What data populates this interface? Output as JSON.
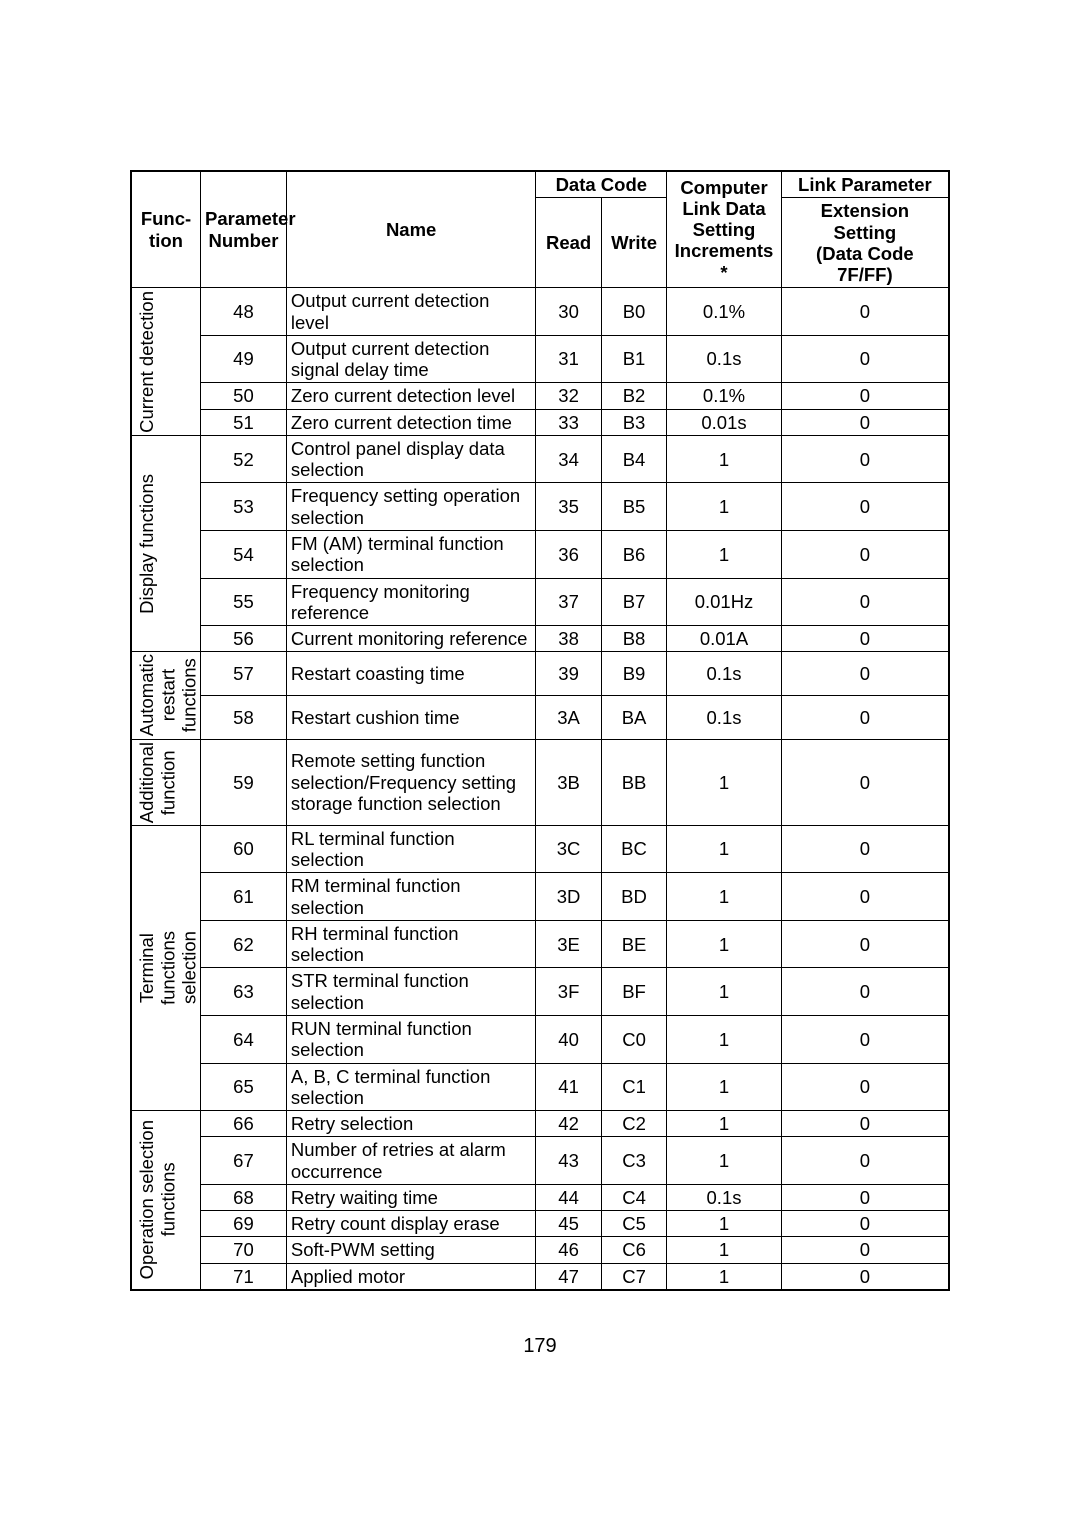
{
  "page_number": "179",
  "headers": {
    "function": "Func-\ntion",
    "parameter_number": "Parameter\nNumber",
    "name": "Name",
    "data_code": "Data Code",
    "read": "Read",
    "write": "Write",
    "increments": "Computer\nLink Data\nSetting\nIncrements *",
    "link_parameter": "Link Parameter",
    "extension": "Extension\nSetting\n(Data Code\n7F/FF)"
  },
  "groups": [
    {
      "label": "Current detection",
      "rows": [
        {
          "param": "48",
          "name": "Output current detection level",
          "read": "30",
          "write": "B0",
          "incr": "0.1%",
          "ext": "0"
        },
        {
          "param": "49",
          "name": "Output current detection signal delay time",
          "read": "31",
          "write": "B1",
          "incr": "0.1s",
          "ext": "0"
        },
        {
          "param": "50",
          "name": "Zero current detection level",
          "read": "32",
          "write": "B2",
          "incr": "0.1%",
          "ext": "0"
        },
        {
          "param": "51",
          "name": "Zero current detection time",
          "read": "33",
          "write": "B3",
          "incr": "0.01s",
          "ext": "0"
        }
      ]
    },
    {
      "label": "Display functions",
      "rows": [
        {
          "param": "52",
          "name": "Control panel display data selection",
          "read": "34",
          "write": "B4",
          "incr": "1",
          "ext": "0"
        },
        {
          "param": "53",
          "name": "Frequency setting operation selection",
          "read": "35",
          "write": "B5",
          "incr": "1",
          "ext": "0"
        },
        {
          "param": "54",
          "name": "FM (AM) terminal function selection",
          "read": "36",
          "write": "B6",
          "incr": "1",
          "ext": "0"
        },
        {
          "param": "55",
          "name": "Frequency monitoring reference",
          "read": "37",
          "write": "B7",
          "incr": "0.01Hz",
          "ext": "0"
        },
        {
          "param": "56",
          "name": "Current monitoring reference",
          "read": "38",
          "write": "B8",
          "incr": "0.01A",
          "ext": "0"
        }
      ]
    },
    {
      "label": "Automatic\nrestart\nfunctions",
      "rows": [
        {
          "param": "57",
          "name": "Restart coasting time",
          "read": "39",
          "write": "B9",
          "incr": "0.1s",
          "ext": "0"
        },
        {
          "param": "58",
          "name": "Restart cushion time",
          "read": "3A",
          "write": "BA",
          "incr": "0.1s",
          "ext": "0"
        }
      ]
    },
    {
      "label": "Additional\nfunction",
      "rows": [
        {
          "param": "59",
          "name": "Remote setting function selection/Frequency setting storage function selection",
          "read": "3B",
          "write": "BB",
          "incr": "1",
          "ext": "0"
        }
      ]
    },
    {
      "label": "Terminal\nfunctions\nselection",
      "rows": [
        {
          "param": "60",
          "name": "RL terminal function selection",
          "read": "3C",
          "write": "BC",
          "incr": "1",
          "ext": "0"
        },
        {
          "param": "61",
          "name": "RM terminal function selection",
          "read": "3D",
          "write": "BD",
          "incr": "1",
          "ext": "0"
        },
        {
          "param": "62",
          "name": "RH terminal function selection",
          "read": "3E",
          "write": "BE",
          "incr": "1",
          "ext": "0"
        },
        {
          "param": "63",
          "name": "STR terminal function selection",
          "read": "3F",
          "write": "BF",
          "incr": "1",
          "ext": "0"
        },
        {
          "param": "64",
          "name": "RUN terminal function selection",
          "read": "40",
          "write": "C0",
          "incr": "1",
          "ext": "0"
        },
        {
          "param": "65",
          "name": "A, B, C terminal function selection",
          "read": "41",
          "write": "C1",
          "incr": "1",
          "ext": "0"
        }
      ]
    },
    {
      "label": "Operation selection\nfunctions",
      "rows": [
        {
          "param": "66",
          "name": "Retry selection",
          "read": "42",
          "write": "C2",
          "incr": "1",
          "ext": "0"
        },
        {
          "param": "67",
          "name": "Number of retries at alarm occurrence",
          "read": "43",
          "write": "C3",
          "incr": "1",
          "ext": "0"
        },
        {
          "param": "68",
          "name": "Retry waiting time",
          "read": "44",
          "write": "C4",
          "incr": "0.1s",
          "ext": "0"
        },
        {
          "param": "69",
          "name": "Retry count display erase",
          "read": "45",
          "write": "C5",
          "incr": "1",
          "ext": "0"
        },
        {
          "param": "70",
          "name": "Soft-PWM setting",
          "read": "46",
          "write": "C6",
          "incr": "1",
          "ext": "0"
        },
        {
          "param": "71",
          "name": "Applied motor",
          "read": "47",
          "write": "C7",
          "incr": "1",
          "ext": "0"
        }
      ]
    }
  ]
}
